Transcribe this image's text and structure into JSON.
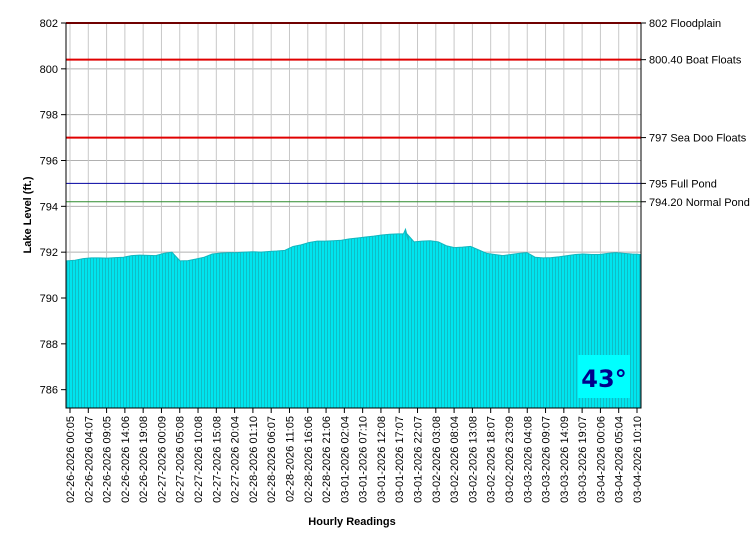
{
  "chart_data": {
    "type": "area",
    "xlabel": "Hourly Readings",
    "ylabel": "Lake Level (ft.)",
    "ylim": [
      785.2,
      802
    ],
    "yticks": [
      786,
      788,
      790,
      792,
      794,
      796,
      798,
      800,
      802
    ],
    "grid": true,
    "x_tick_labels": [
      "02-26-2026 00:05",
      "02-26-2026 04:07",
      "02-26-2026 09:05",
      "02-26-2026 14:06",
      "02-26-2026 19:08",
      "02-27-2026 00:09",
      "02-27-2026 05:08",
      "02-27-2026 10:08",
      "02-27-2026 15:08",
      "02-27-2026 20:04",
      "02-28-2026 01:10",
      "02-28-2026 06:07",
      "02-28-2026 11:05",
      "02-28-2026 16:06",
      "02-28-2026 21:06",
      "03-01-2026 02:04",
      "03-01-2026 07:10",
      "03-01-2026 12:08",
      "03-01-2026 17:07",
      "03-01-2026 22:07",
      "03-02-2026 03:08",
      "03-02-2026 08:04",
      "03-02-2026 13:08",
      "03-02-2026 18:07",
      "03-02-2026 23:09",
      "03-03-2026 04:08",
      "03-03-2026 09:07",
      "03-03-2026 14:09",
      "03-03-2026 19:07",
      "03-04-2026 00:06",
      "03-04-2026 05:04",
      "03-04-2026 10:10"
    ],
    "series": [
      {
        "color": "#00e5ee",
        "values": [
          791.62,
          791.65,
          791.72,
          791.75,
          791.75,
          791.74,
          791.76,
          791.78,
          791.85,
          791.87,
          791.86,
          791.85,
          791.95,
          792.0,
          791.62,
          791.63,
          791.7,
          791.78,
          791.92,
          791.96,
          791.98,
          791.98,
          792.0,
          792.02,
          792.0,
          792.03,
          792.05,
          792.08,
          792.25,
          792.32,
          792.42,
          792.48,
          792.48,
          792.5,
          792.52,
          792.58,
          792.62,
          792.66,
          792.7,
          792.75,
          792.78,
          792.8,
          792.85,
          792.45,
          792.48,
          792.5,
          792.45,
          792.28,
          792.2,
          792.22,
          792.25,
          792.1,
          791.95,
          791.9,
          791.85,
          791.9,
          791.95,
          791.98,
          791.78,
          791.75,
          791.76,
          791.8,
          791.85,
          791.9,
          791.92,
          791.9,
          791.9,
          791.95,
          791.98,
          791.95,
          791.92,
          791.9
        ]
      }
    ],
    "annotations": [
      {
        "value": 802,
        "label": "802 Floodplain",
        "color": "#e00000"
      },
      {
        "value": 800.4,
        "label": "800.40 Boat Floats",
        "color": "#e00000"
      },
      {
        "value": 797,
        "label": "797 Sea Doo Floats",
        "color": "#e00000"
      },
      {
        "value": 795,
        "label": "795 Full Pond",
        "color": "#0000a0"
      },
      {
        "value": 794.2,
        "label": "794.20 Normal Pond",
        "color": "#2e8b2e"
      }
    ],
    "spike": {
      "x_fraction": 0.5,
      "value": 793.0
    },
    "current_temperature": "43°",
    "temperature_badge_color": "#00ffff"
  }
}
